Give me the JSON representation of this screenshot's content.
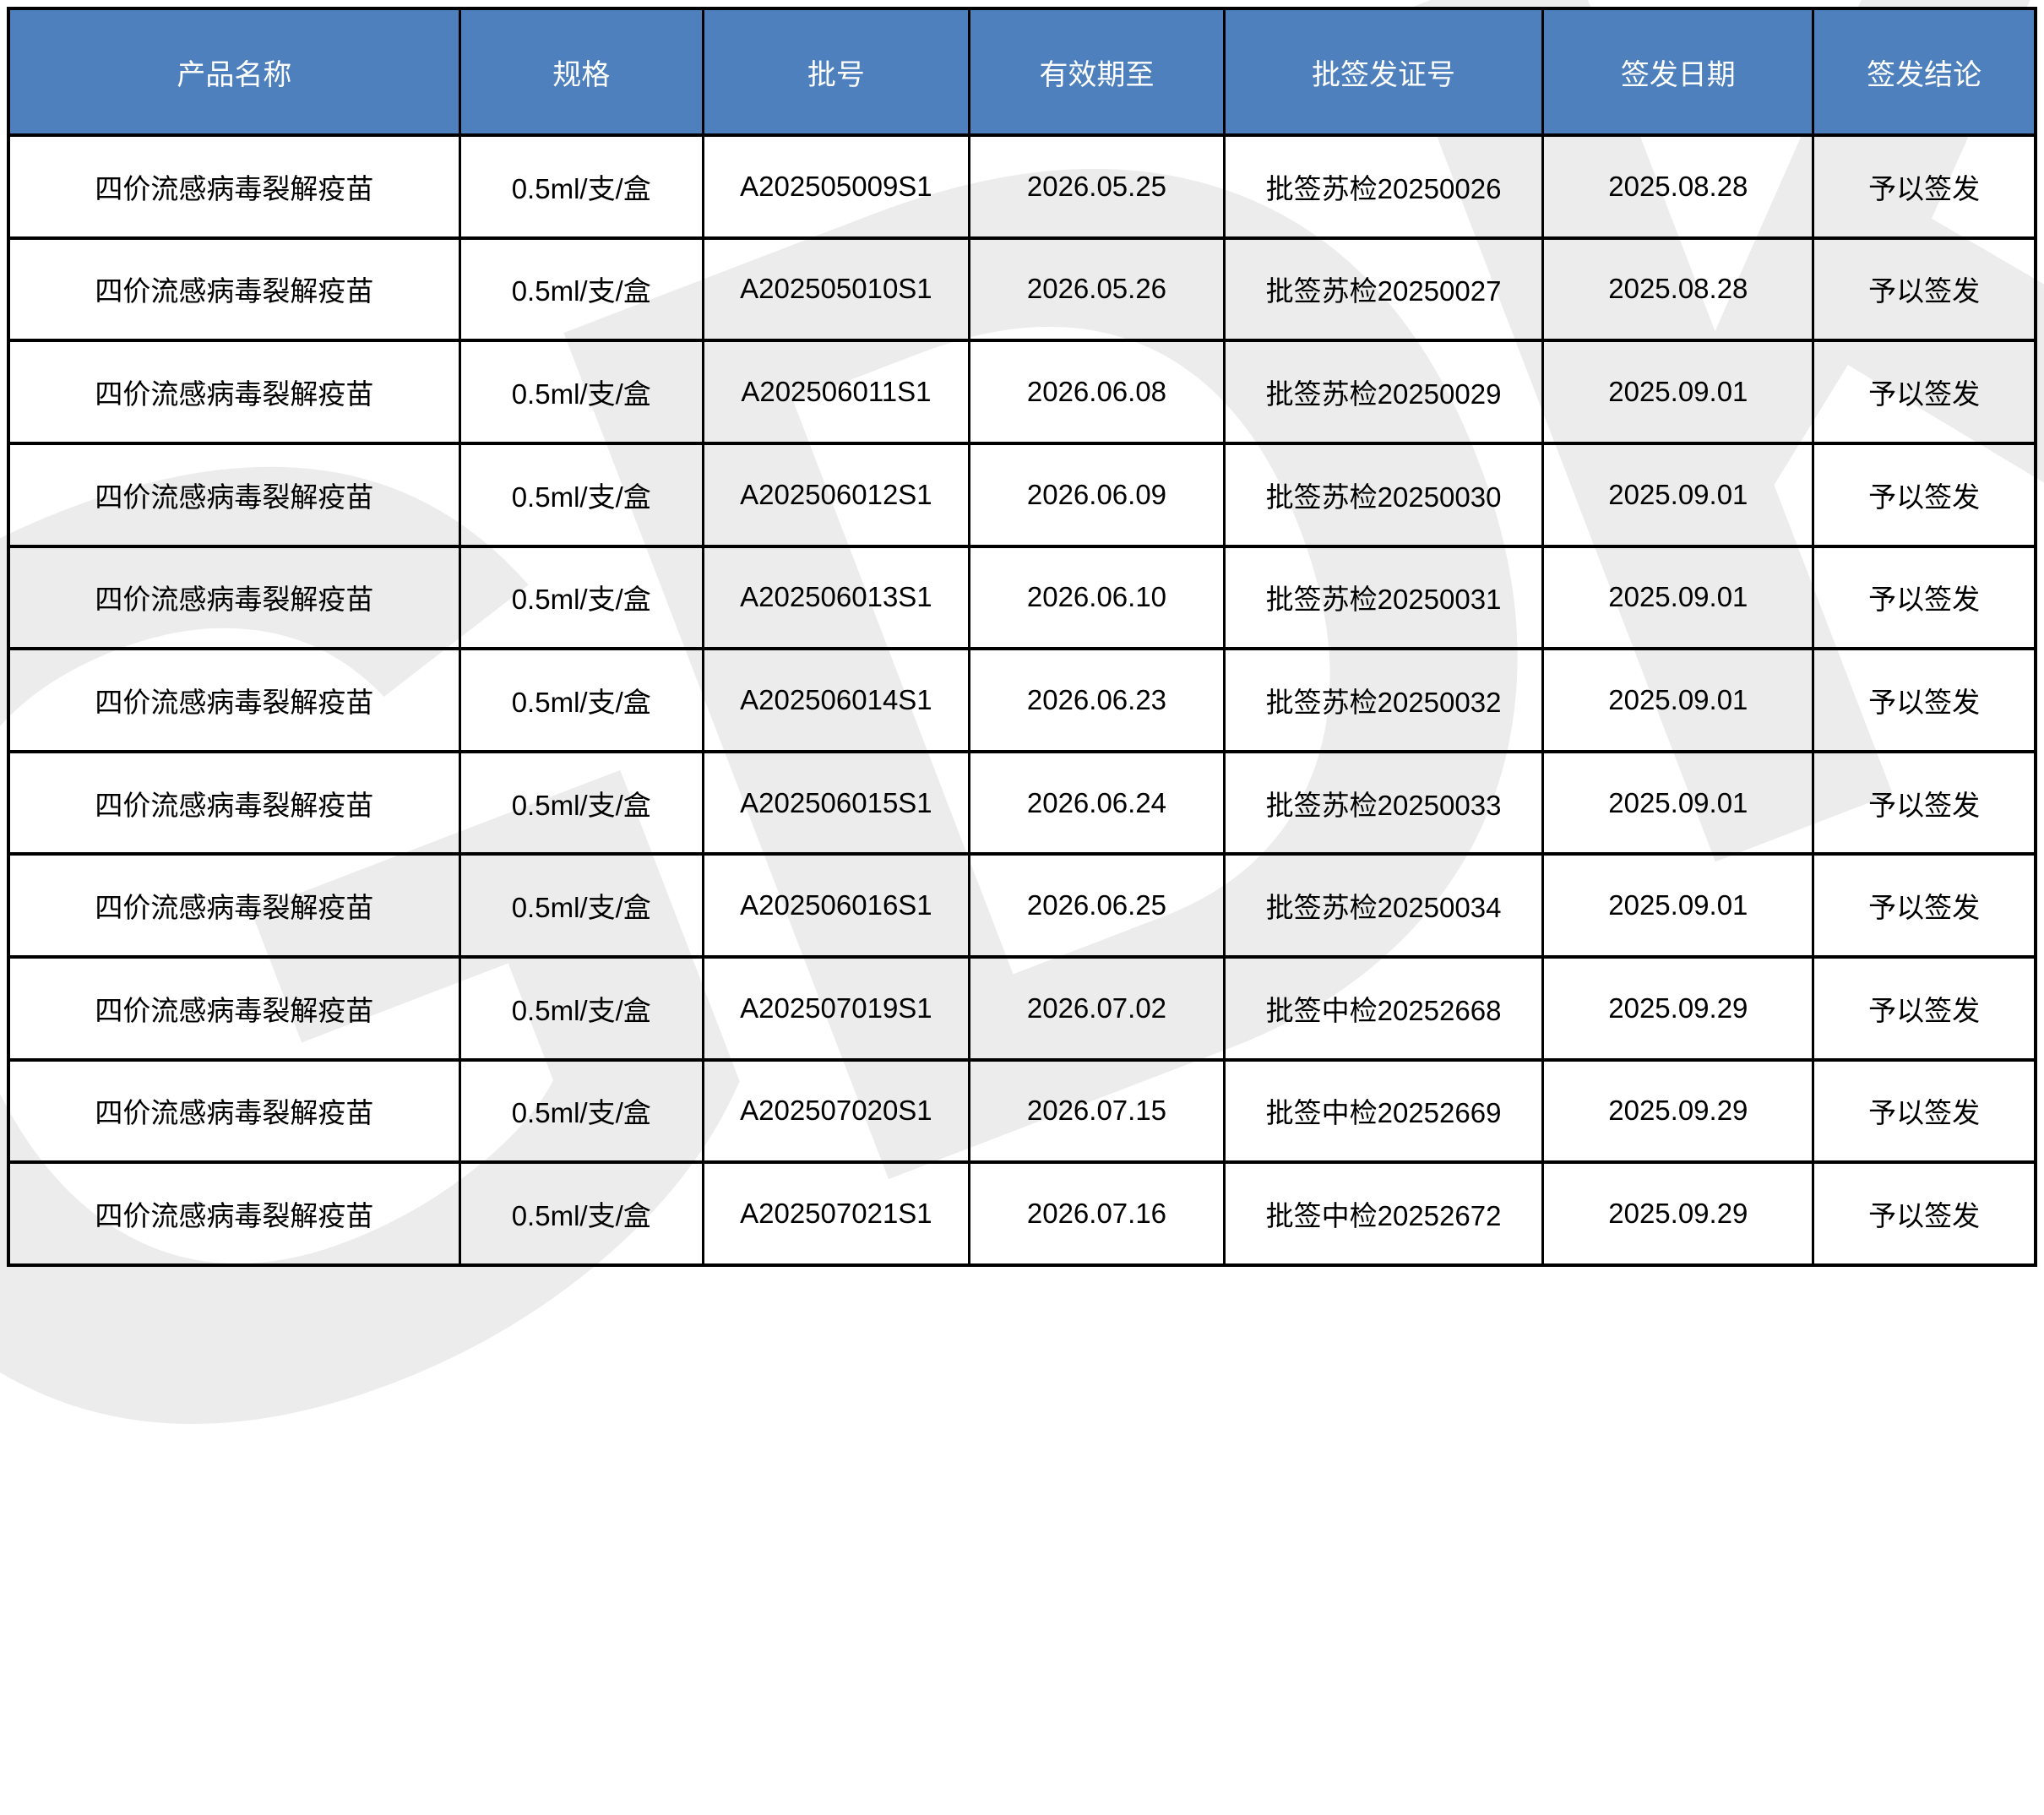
{
  "watermark": {
    "text": "GDK",
    "color": "#ececec"
  },
  "table": {
    "header_bg": "#4d80bc",
    "header_text_color": "#ffffff",
    "columns": [
      "产品名称",
      "规格",
      "批号",
      "有效期至",
      "批签发证号",
      "签发日期",
      "签发结论"
    ],
    "rows": [
      [
        "四价流感病毒裂解疫苗",
        "0.5ml/支/盒",
        "A202505009S1",
        "2026.05.25",
        "批签苏检20250026",
        "2025.08.28",
        "予以签发"
      ],
      [
        "四价流感病毒裂解疫苗",
        "0.5ml/支/盒",
        "A202505010S1",
        "2026.05.26",
        "批签苏检20250027",
        "2025.08.28",
        "予以签发"
      ],
      [
        "四价流感病毒裂解疫苗",
        "0.5ml/支/盒",
        "A202506011S1",
        "2026.06.08",
        "批签苏检20250029",
        "2025.09.01",
        "予以签发"
      ],
      [
        "四价流感病毒裂解疫苗",
        "0.5ml/支/盒",
        "A202506012S1",
        "2026.06.09",
        "批签苏检20250030",
        "2025.09.01",
        "予以签发"
      ],
      [
        "四价流感病毒裂解疫苗",
        "0.5ml/支/盒",
        "A202506013S1",
        "2026.06.10",
        "批签苏检20250031",
        "2025.09.01",
        "予以签发"
      ],
      [
        "四价流感病毒裂解疫苗",
        "0.5ml/支/盒",
        "A202506014S1",
        "2026.06.23",
        "批签苏检20250032",
        "2025.09.01",
        "予以签发"
      ],
      [
        "四价流感病毒裂解疫苗",
        "0.5ml/支/盒",
        "A202506015S1",
        "2026.06.24",
        "批签苏检20250033",
        "2025.09.01",
        "予以签发"
      ],
      [
        "四价流感病毒裂解疫苗",
        "0.5ml/支/盒",
        "A202506016S1",
        "2026.06.25",
        "批签苏检20250034",
        "2025.09.01",
        "予以签发"
      ],
      [
        "四价流感病毒裂解疫苗",
        "0.5ml/支/盒",
        "A202507019S1",
        "2026.07.02",
        "批签中检20252668",
        "2025.09.29",
        "予以签发"
      ],
      [
        "四价流感病毒裂解疫苗",
        "0.5ml/支/盒",
        "A202507020S1",
        "2026.07.15",
        "批签中检20252669",
        "2025.09.29",
        "予以签发"
      ],
      [
        "四价流感病毒裂解疫苗",
        "0.5ml/支/盒",
        "A202507021S1",
        "2026.07.16",
        "批签中检20252672",
        "2025.09.29",
        "予以签发"
      ]
    ]
  },
  "chart_data": {
    "type": "table",
    "columns": [
      "产品名称",
      "规格",
      "批号",
      "有效期至",
      "批签发证号",
      "签发日期",
      "签发结论"
    ],
    "rows": [
      [
        "四价流感病毒裂解疫苗",
        "0.5ml/支/盒",
        "A202505009S1",
        "2026.05.25",
        "批签苏检20250026",
        "2025.08.28",
        "予以签发"
      ],
      [
        "四价流感病毒裂解疫苗",
        "0.5ml/支/盒",
        "A202505010S1",
        "2026.05.26",
        "批签苏检20250027",
        "2025.08.28",
        "予以签发"
      ],
      [
        "四价流感病毒裂解疫苗",
        "0.5ml/支/盒",
        "A202506011S1",
        "2026.06.08",
        "批签苏检20250029",
        "2025.09.01",
        "予以签发"
      ],
      [
        "四价流感病毒裂解疫苗",
        "0.5ml/支/盒",
        "A202506012S1",
        "2026.06.09",
        "批签苏检20250030",
        "2025.09.01",
        "予以签发"
      ],
      [
        "四价流感病毒裂解疫苗",
        "0.5ml/支/盒",
        "A202506013S1",
        "2026.06.10",
        "批签苏检20250031",
        "2025.09.01",
        "予以签发"
      ],
      [
        "四价流感病毒裂解疫苗",
        "0.5ml/支/盒",
        "A202506014S1",
        "2026.06.23",
        "批签苏检20250032",
        "2025.09.01",
        "予以签发"
      ],
      [
        "四价流感病毒裂解疫苗",
        "0.5ml/支/盒",
        "A202506015S1",
        "2026.06.24",
        "批签苏检20250033",
        "2025.09.01",
        "予以签发"
      ],
      [
        "四价流感病毒裂解疫苗",
        "0.5ml/支/盒",
        "A202506016S1",
        "2026.06.25",
        "批签苏检20250034",
        "2025.09.01",
        "予以签发"
      ],
      [
        "四价流感病毒裂解疫苗",
        "0.5ml/支/盒",
        "A202507019S1",
        "2026.07.02",
        "批签中检20252668",
        "2025.09.29",
        "予以签发"
      ],
      [
        "四价流感病毒裂解疫苗",
        "0.5ml/支/盒",
        "A202507020S1",
        "2026.07.15",
        "批签中检20252669",
        "2025.09.29",
        "予以签发"
      ],
      [
        "四价流感病毒裂解疫苗",
        "0.5ml/支/盒",
        "A202507021S1",
        "2026.07.16",
        "批签中检20252672",
        "2025.09.29",
        "予以签发"
      ]
    ],
    "title": "",
    "legend": "none",
    "grid": "full black borders, blue header row"
  }
}
